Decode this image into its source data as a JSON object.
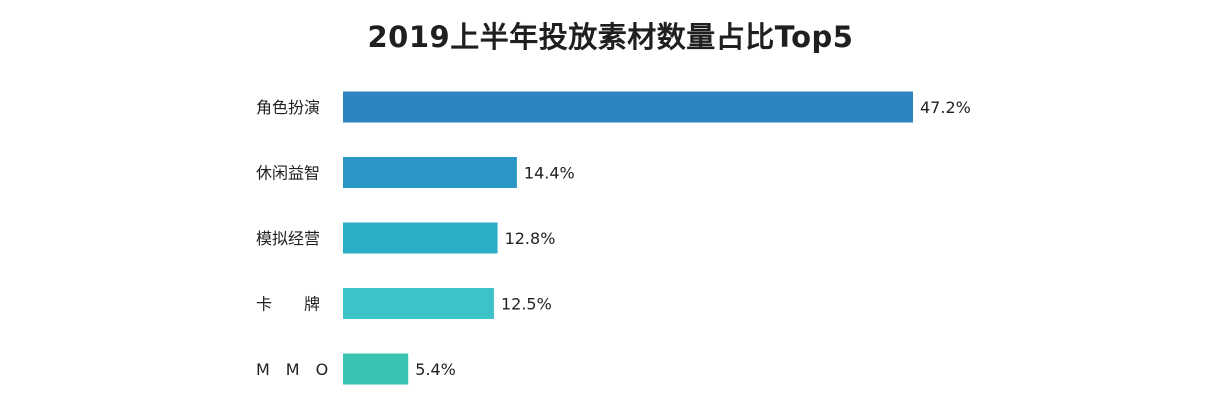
{
  "chart_data": {
    "type": "bar",
    "orientation": "horizontal",
    "title": "2019上半年投放素材数量占比Top5",
    "categories": [
      "角色扮演",
      "休闲益智",
      "模拟经营",
      "卡　　牌",
      "M　M　O"
    ],
    "values": [
      47.2,
      14.4,
      12.8,
      12.5,
      5.4
    ],
    "value_labels": [
      "47.2%",
      "14.4%",
      "12.8%",
      "12.5%",
      "5.4%"
    ],
    "unit": "%",
    "colors": [
      "#2e83c1",
      "#2b97c6",
      "#2aadc7",
      "#3dc2c8",
      "#39c4b2"
    ],
    "grid": false,
    "legend": "none"
  }
}
